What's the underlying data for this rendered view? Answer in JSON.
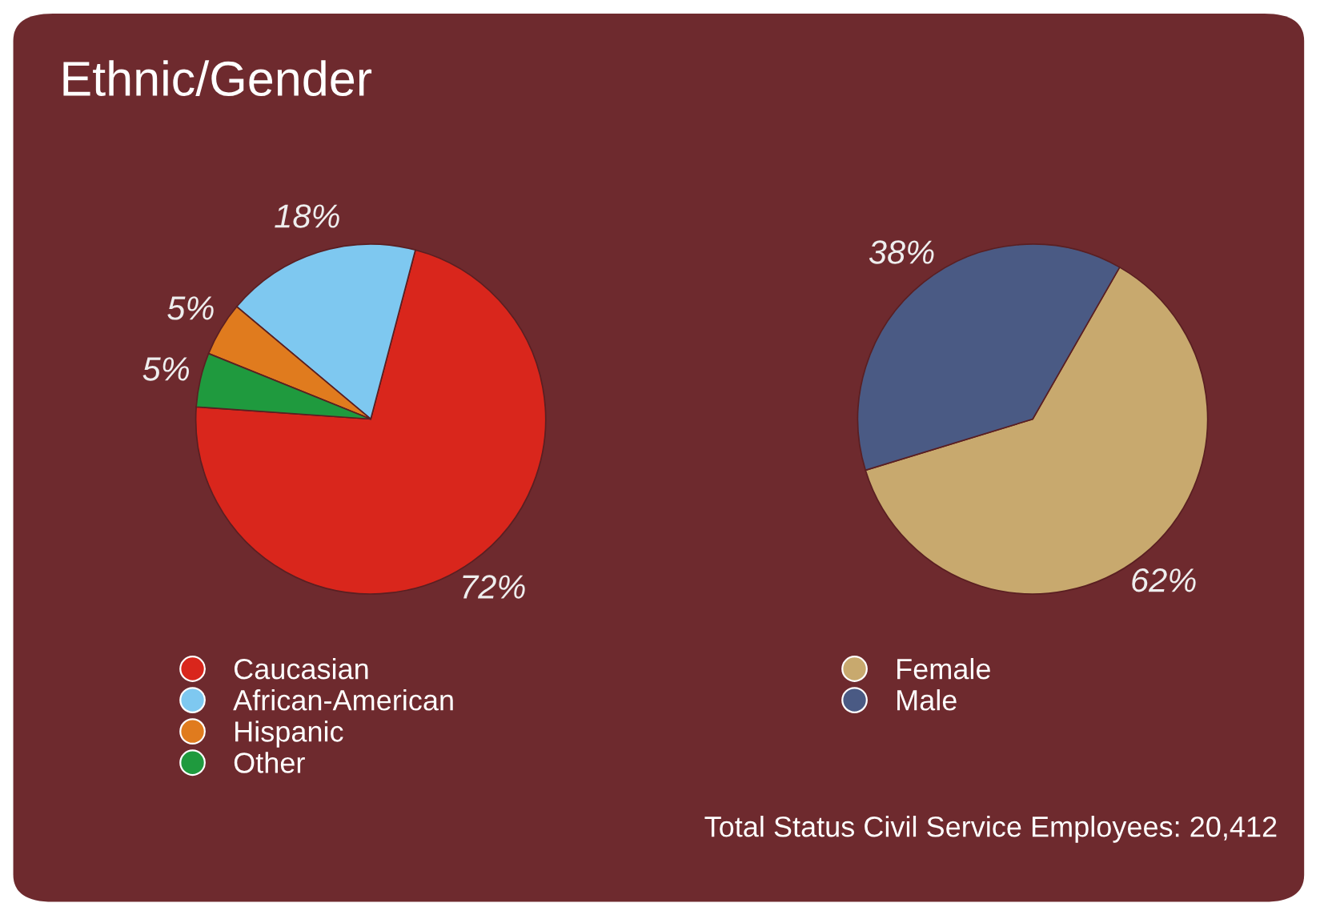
{
  "chart_data": [
    {
      "type": "pie",
      "title": "Ethnic/Gender",
      "categories": [
        "Caucasian",
        "African-American",
        "Hispanic",
        "Other"
      ],
      "values": [
        72,
        18,
        5,
        5
      ],
      "colors": [
        "#d9261c",
        "#7ec8f0",
        "#e07b1e",
        "#1f9a3e"
      ],
      "value_labels": [
        "72%",
        "18%",
        "5%",
        "5%"
      ],
      "legend": "bottom"
    },
    {
      "type": "pie",
      "categories": [
        "Female",
        "Male"
      ],
      "values": [
        62,
        38
      ],
      "colors": [
        "#c8a96e",
        "#4a5a84"
      ],
      "value_labels": [
        "62%",
        "38%"
      ],
      "legend": "bottom",
      "annotations": [
        "Total Status Civil Service Employees: 20,412"
      ]
    }
  ]
}
